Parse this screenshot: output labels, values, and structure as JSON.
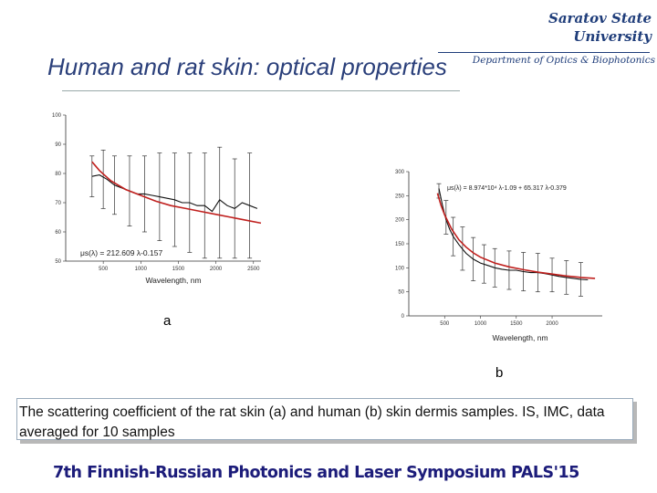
{
  "header": {
    "university_line1": "Saratov State",
    "university_line2": "University",
    "department": "Department of Optics & Biophotonics",
    "title": "Human and rat skin: optical properties"
  },
  "panels": {
    "a": "a",
    "b": "b"
  },
  "caption": "The scattering coefficient of the rat skin (a) and human (b) skin dermis samples. IS, IMC, data averaged for 10 samples",
  "footer": "7th Finnish-Russian Photonics and Laser Symposium PALS'15",
  "colors": {
    "fit": "#c0201e",
    "data": "#111111",
    "header": "#1f3d7a"
  },
  "chart_data": [
    {
      "type": "line",
      "xlabel": "Wavelength, nm",
      "ylabel": "",
      "xlim": [
        0,
        2600
      ],
      "ylim": [
        50,
        100
      ],
      "xticks": [
        500,
        1000,
        1500,
        2000,
        2500
      ],
      "yticks": [
        50,
        60,
        70,
        80,
        90,
        100
      ],
      "fit_equation": "μs(λ) = 212.609 λ-0.157",
      "series": [
        {
          "role": "measured",
          "x": [
            350,
            450,
            550,
            650,
            750,
            850,
            950,
            1050,
            1150,
            1250,
            1350,
            1450,
            1550,
            1650,
            1750,
            1850,
            1950,
            2050,
            2150,
            2250,
            2350,
            2450,
            2550
          ],
          "y": [
            79,
            79.5,
            78,
            76,
            75,
            74,
            73,
            73,
            72.5,
            72,
            71.5,
            71,
            70,
            70,
            69,
            69,
            67,
            71,
            69,
            68,
            70,
            69,
            68
          ]
        },
        {
          "role": "fit",
          "x": [
            350,
            450,
            600,
            800,
            1000,
            1200,
            1400,
            1600,
            1800,
            2000,
            2200,
            2400,
            2600
          ],
          "y": [
            84,
            81,
            77.5,
            74.5,
            72.5,
            70.5,
            69,
            68,
            67,
            66,
            65,
            64,
            63
          ]
        }
      ],
      "error_bars": {
        "x": [
          350,
          500,
          650,
          850,
          1050,
          1250,
          1450,
          1650,
          1850,
          2050,
          2250,
          2450
        ],
        "y": [
          79,
          78,
          76,
          74,
          73,
          72,
          71,
          70,
          69,
          70,
          68,
          69
        ],
        "err": [
          7,
          10,
          10,
          12,
          13,
          15,
          16,
          17,
          18,
          19,
          17,
          18
        ]
      }
    },
    {
      "type": "line",
      "xlabel": "Wavelength, nm",
      "ylabel": "",
      "xlim": [
        0,
        2700
      ],
      "ylim": [
        0,
        300
      ],
      "xticks": [
        500,
        1000,
        1500,
        2000
      ],
      "yticks": [
        0,
        50,
        100,
        150,
        200,
        250,
        300
      ],
      "fit_equation": "μs(λ) = 8.974*10⁴ λ-1.09 + 65.317 λ-0.379",
      "series": [
        {
          "role": "measured",
          "x": [
            420,
            470,
            520,
            570,
            620,
            700,
            800,
            900,
            1000,
            1100,
            1200,
            1300,
            1400,
            1500,
            1600,
            1700,
            1800,
            1900,
            2000,
            2100,
            2200,
            2300,
            2400,
            2500
          ],
          "y": [
            265,
            230,
            200,
            180,
            165,
            148,
            130,
            118,
            110,
            105,
            100,
            97,
            95,
            95,
            92,
            90,
            90,
            88,
            85,
            82,
            80,
            78,
            76,
            75
          ]
        },
        {
          "role": "fit",
          "x": [
            400,
            450,
            500,
            600,
            700,
            800,
            900,
            1000,
            1200,
            1400,
            1600,
            1800,
            2000,
            2200,
            2400,
            2600
          ],
          "y": [
            255,
            230,
            210,
            180,
            158,
            143,
            131,
            122,
            110,
            102,
            96,
            91,
            87,
            83,
            80,
            78
          ]
        }
      ],
      "error_bars": {
        "x": [
          420,
          520,
          620,
          750,
          900,
          1050,
          1200,
          1400,
          1600,
          1800,
          2000,
          2200,
          2400
        ],
        "y": [
          260,
          205,
          165,
          140,
          118,
          108,
          100,
          95,
          92,
          90,
          85,
          80,
          76
        ],
        "err": [
          15,
          35,
          40,
          45,
          45,
          40,
          40,
          40,
          40,
          40,
          35,
          35,
          35
        ]
      }
    }
  ]
}
